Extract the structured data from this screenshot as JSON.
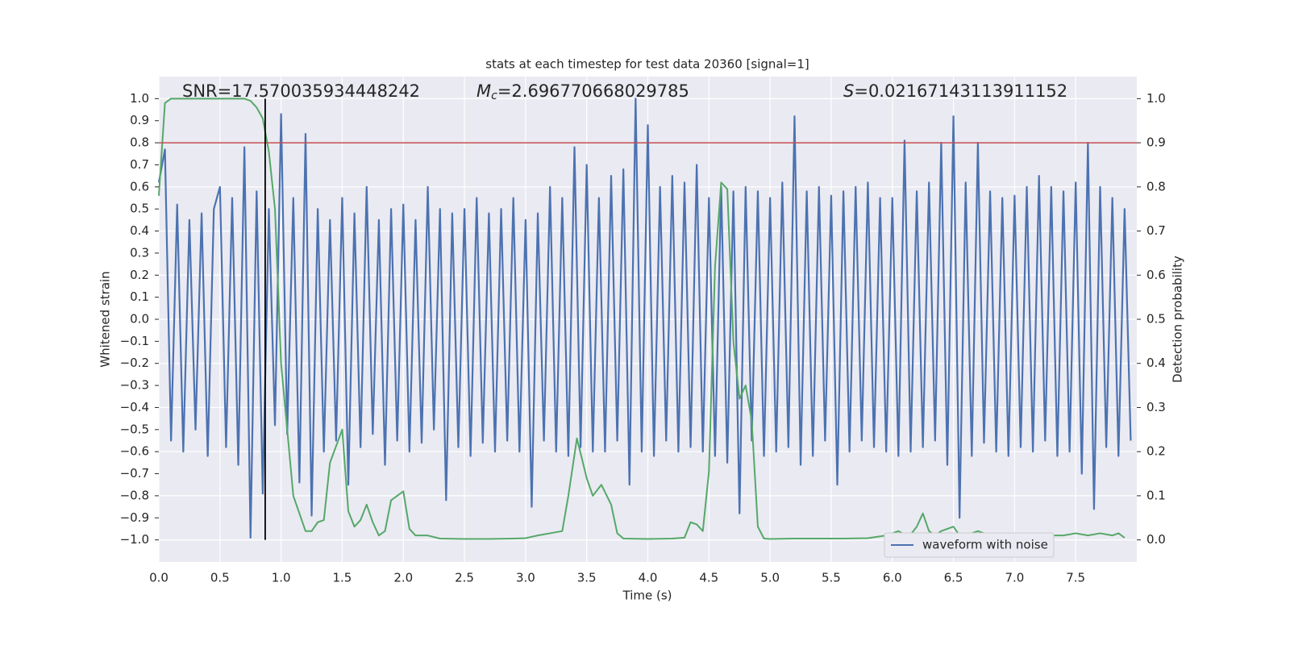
{
  "chart_data": {
    "type": "line",
    "title": "stats at each timestep for test data 20360 [signal=1]",
    "xlabel": "Time (s)",
    "ylabel": "Whitened strain",
    "y2label": "Detection probability",
    "xlim": [
      0,
      8.0
    ],
    "ylim": [
      -1.1,
      1.1
    ],
    "y2lim": [
      -0.05,
      1.05
    ],
    "xticks": [
      {
        "value": 0,
        "label": "0.0"
      },
      0.5,
      {
        "value": 1,
        "label": "1.0"
      },
      1.5,
      {
        "value": 2,
        "label": "2.0"
      },
      2.5,
      {
        "value": 3,
        "label": "3.0"
      },
      3.5,
      {
        "value": 4,
        "label": "4.0"
      },
      4.5,
      {
        "value": 5,
        "label": "5.0"
      },
      5.5,
      {
        "value": 6,
        "label": "6.0"
      },
      6.5,
      {
        "value": 7,
        "label": "7.0"
      },
      7.5
    ],
    "yticks": [
      {
        "value": 1,
        "label": "1.0"
      },
      0.9,
      0.8,
      0.7,
      0.6,
      0.5,
      0.4,
      0.3,
      0.2,
      0.1,
      {
        "value": 0,
        "label": "0.0"
      },
      {
        "value": -0.1,
        "label": "−0.1"
      },
      {
        "value": -0.2,
        "label": "−0.2"
      },
      {
        "value": -0.3,
        "label": "−0.3"
      },
      {
        "value": -0.4,
        "label": "−0.4"
      },
      {
        "value": -0.5,
        "label": "−0.5"
      },
      {
        "value": -0.6,
        "label": "−0.6"
      },
      {
        "value": -0.7,
        "label": "−0.7"
      },
      {
        "value": -0.8,
        "label": "−0.8"
      },
      {
        "value": -0.9,
        "label": "−0.9"
      },
      {
        "value": -1,
        "label": "−1.0"
      }
    ],
    "y2ticks": [
      {
        "value": 1,
        "label": "1.0"
      },
      0.9,
      0.8,
      0.7,
      0.6,
      0.5,
      0.4,
      0.3,
      0.2,
      0.1,
      {
        "value": 0,
        "label": "0.0"
      }
    ],
    "grid": true,
    "legend": "lower right",
    "series": [
      {
        "name": "waveform with noise",
        "color": "#4c72b0",
        "x": [
          0,
          0.05,
          0.1,
          0.15,
          0.2,
          0.25,
          0.3,
          0.35,
          0.4,
          0.45,
          0.5,
          0.55,
          0.6,
          0.65,
          0.7,
          0.75,
          0.8,
          0.85,
          0.9,
          0.95,
          1,
          1.05,
          1.1,
          1.15,
          1.2,
          1.25,
          1.3,
          1.35,
          1.4,
          1.45,
          1.5,
          1.55,
          1.6,
          1.65,
          1.7,
          1.75,
          1.8,
          1.85,
          1.9,
          1.95,
          2,
          2.05,
          2.1,
          2.15,
          2.2,
          2.25,
          2.3,
          2.35,
          2.4,
          2.45,
          2.5,
          2.55,
          2.6,
          2.65,
          2.7,
          2.75,
          2.8,
          2.85,
          2.9,
          2.95,
          3,
          3.05,
          3.1,
          3.15,
          3.2,
          3.25,
          3.3,
          3.35,
          3.4,
          3.45,
          3.5,
          3.55,
          3.6,
          3.65,
          3.7,
          3.75,
          3.8,
          3.85,
          3.9,
          3.95,
          4,
          4.05,
          4.1,
          4.15,
          4.2,
          4.25,
          4.3,
          4.35,
          4.4,
          4.45,
          4.5,
          4.55,
          4.6,
          4.65,
          4.7,
          4.75,
          4.8,
          4.85,
          4.9,
          4.95,
          5,
          5.05,
          5.1,
          5.15,
          5.2,
          5.25,
          5.3,
          5.35,
          5.4,
          5.45,
          5.5,
          5.55,
          5.6,
          5.65,
          5.7,
          5.75,
          5.8,
          5.85,
          5.9,
          5.95,
          6,
          6.05,
          6.1,
          6.15,
          6.2,
          6.25,
          6.3,
          6.35,
          6.4,
          6.45,
          6.5,
          6.55,
          6.6,
          6.65,
          6.7,
          6.75,
          6.8,
          6.85,
          6.9,
          6.95,
          7,
          7.05,
          7.1,
          7.15,
          7.2,
          7.25,
          7.3,
          7.35,
          7.4,
          7.45,
          7.5,
          7.55,
          7.6,
          7.65,
          7.7,
          7.75,
          7.8,
          7.85,
          7.9,
          7.95
        ],
        "values": [
          0.62,
          0.77,
          -0.55,
          0.52,
          -0.6,
          0.45,
          -0.5,
          0.48,
          -0.62,
          0.5,
          0.6,
          -0.58,
          0.55,
          -0.66,
          0.78,
          -0.99,
          0.58,
          -0.79,
          0.5,
          -0.48,
          0.93,
          -0.52,
          0.55,
          -0.74,
          0.84,
          -0.89,
          0.5,
          -0.6,
          0.45,
          -0.55,
          0.55,
          -0.75,
          0.48,
          -0.58,
          0.6,
          -0.52,
          0.45,
          -0.66,
          0.5,
          -0.55,
          0.52,
          -0.6,
          0.45,
          -0.56,
          0.6,
          -0.5,
          0.5,
          -0.82,
          0.48,
          -0.58,
          0.5,
          -0.62,
          0.55,
          -0.56,
          0.48,
          -0.6,
          0.5,
          -0.55,
          0.55,
          -0.6,
          0.45,
          -0.85,
          0.48,
          -0.55,
          0.6,
          -0.6,
          0.55,
          -0.62,
          0.78,
          -0.58,
          0.7,
          -0.6,
          0.55,
          -0.6,
          0.65,
          -0.55,
          0.68,
          -0.75,
          1.0,
          -0.6,
          0.88,
          -0.62,
          0.6,
          -0.55,
          0.65,
          -0.6,
          0.62,
          -0.58,
          0.7,
          -0.6,
          0.55,
          -0.62,
          0.6,
          -0.65,
          0.58,
          -0.88,
          0.6,
          -0.55,
          0.58,
          -0.62,
          0.55,
          -0.6,
          0.62,
          -0.58,
          0.92,
          -0.66,
          0.58,
          -0.62,
          0.6,
          -0.55,
          0.56,
          -0.75,
          0.58,
          -0.6,
          0.6,
          -0.55,
          0.62,
          -0.58,
          0.55,
          -0.6,
          0.55,
          -0.62,
          0.81,
          -0.6,
          0.58,
          -0.58,
          0.62,
          -0.55,
          0.8,
          -0.66,
          0.92,
          -0.9,
          0.62,
          -0.62,
          0.8,
          -0.56,
          0.58,
          -0.6,
          0.55,
          -0.62,
          0.56,
          -0.58,
          0.6,
          -0.6,
          0.65,
          -0.55,
          0.6,
          -0.62,
          0.58,
          -0.6,
          0.62,
          -0.7,
          0.8,
          -0.86,
          0.6,
          -0.58,
          0.55,
          -0.62,
          0.5,
          -0.55
        ]
      },
      {
        "color": "#55a868",
        "axis": "y2",
        "x": [
          0,
          0.05,
          0.1,
          0.2,
          0.3,
          0.4,
          0.5,
          0.6,
          0.7,
          0.75,
          0.8,
          0.85,
          0.9,
          0.95,
          1.0,
          1.05,
          1.1,
          1.15,
          1.2,
          1.25,
          1.3,
          1.35,
          1.4,
          1.5,
          1.55,
          1.6,
          1.65,
          1.7,
          1.75,
          1.8,
          1.85,
          1.9,
          2.0,
          2.05,
          2.1,
          2.15,
          2.2,
          2.3,
          2.5,
          2.7,
          2.9,
          3.0,
          3.1,
          3.2,
          3.3,
          3.35,
          3.42,
          3.5,
          3.55,
          3.62,
          3.7,
          3.75,
          3.8,
          4.0,
          4.2,
          4.3,
          4.35,
          4.4,
          4.45,
          4.5,
          4.55,
          4.6,
          4.65,
          4.7,
          4.75,
          4.8,
          4.85,
          4.9,
          4.95,
          5.0,
          5.2,
          5.6,
          5.8,
          5.95,
          6.0,
          6.05,
          6.1,
          6.15,
          6.2,
          6.25,
          6.3,
          6.35,
          6.4,
          6.5,
          6.55,
          6.6,
          6.7,
          6.75,
          6.8,
          6.9,
          7.0,
          7.05,
          7.1,
          7.2,
          7.3,
          7.4,
          7.5,
          7.6,
          7.7,
          7.8,
          7.85,
          7.9
        ],
        "values": [
          0.78,
          0.99,
          1.0,
          1.0,
          1.0,
          1.0,
          1.0,
          1.0,
          1.0,
          0.995,
          0.98,
          0.955,
          0.88,
          0.75,
          0.4,
          0.25,
          0.1,
          0.06,
          0.02,
          0.02,
          0.04,
          0.045,
          0.175,
          0.25,
          0.065,
          0.03,
          0.045,
          0.08,
          0.04,
          0.01,
          0.02,
          0.09,
          0.11,
          0.025,
          0.01,
          0.01,
          0.01,
          0.003,
          0.002,
          0.002,
          0.003,
          0.004,
          0.01,
          0.015,
          0.02,
          0.1,
          0.23,
          0.14,
          0.1,
          0.125,
          0.08,
          0.015,
          0.003,
          0.002,
          0.003,
          0.005,
          0.04,
          0.035,
          0.02,
          0.155,
          0.62,
          0.81,
          0.795,
          0.45,
          0.32,
          0.35,
          0.27,
          0.03,
          0.003,
          0.002,
          0.003,
          0.003,
          0.004,
          0.01,
          0.015,
          0.02,
          0.012,
          0.012,
          0.03,
          0.06,
          0.02,
          0.01,
          0.02,
          0.03,
          0.01,
          0.01,
          0.02,
          0.015,
          0.01,
          0.01,
          0.01,
          0.005,
          0.005,
          0.015,
          0.01,
          0.01,
          0.015,
          0.01,
          0.015,
          0.01,
          0.015,
          0.005
        ]
      }
    ],
    "hlines": [
      {
        "value": 0.9,
        "axis": "y2",
        "color": "#c44e52"
      }
    ],
    "vlines": [
      {
        "value": 0.87,
        "ymin": -1,
        "ymax": 1,
        "color": "#000000"
      }
    ],
    "annotations": [
      {
        "text": "SNR=17.570035934448242"
      },
      {
        "symbol": "M",
        "subscript": "c",
        "text": "=2.696770668029785"
      },
      {
        "symbol": "S",
        "text": "=0.02167143113911152"
      }
    ]
  }
}
